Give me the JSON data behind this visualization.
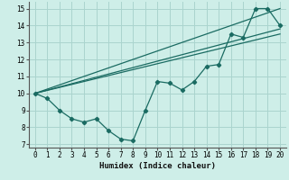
{
  "xlabel": "Humidex (Indice chaleur)",
  "background_color": "#ceeee8",
  "grid_color": "#aad4ce",
  "line_color": "#1a6b62",
  "xlim": [
    -0.5,
    20.5
  ],
  "ylim": [
    6.8,
    15.4
  ],
  "xticks": [
    0,
    1,
    2,
    3,
    4,
    5,
    6,
    7,
    8,
    9,
    10,
    11,
    12,
    13,
    14,
    15,
    16,
    17,
    18,
    19,
    20
  ],
  "yticks": [
    7,
    8,
    9,
    10,
    11,
    12,
    13,
    14,
    15
  ],
  "lines": [
    {
      "x": [
        0,
        1,
        2,
        3,
        4,
        5,
        6,
        7,
        8,
        9,
        10,
        11,
        12,
        13,
        14,
        15,
        16,
        17,
        18,
        19,
        20
      ],
      "y": [
        10,
        9.7,
        9.0,
        8.5,
        8.3,
        8.5,
        7.8,
        7.3,
        7.2,
        9.0,
        10.7,
        10.6,
        10.2,
        10.7,
        11.6,
        11.7,
        13.5,
        13.3,
        15.0,
        15.0,
        14.0
      ],
      "marker": true
    },
    {
      "x": [
        0,
        20
      ],
      "y": [
        10,
        15.0
      ],
      "marker": false
    },
    {
      "x": [
        0,
        20
      ],
      "y": [
        10,
        13.8
      ],
      "marker": false
    },
    {
      "x": [
        0,
        20
      ],
      "y": [
        10,
        13.5
      ],
      "marker": false
    }
  ]
}
